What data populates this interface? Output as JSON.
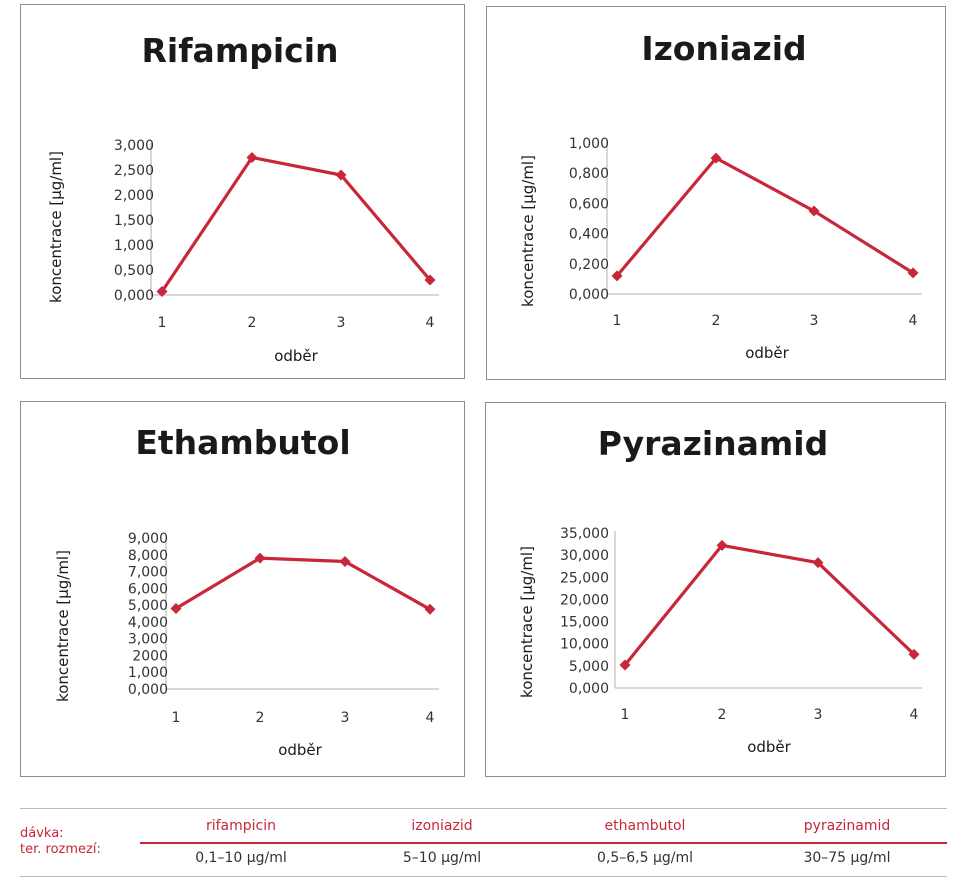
{
  "chart_data": [
    {
      "type": "line",
      "title": "Rifampicin",
      "xlabel": "odběr",
      "ylabel": "koncentrace [µg/ml]",
      "categories": [
        "1",
        "2",
        "3",
        "4"
      ],
      "values": [
        0.07,
        2.75,
        2.4,
        0.3
      ],
      "ylim": [
        0,
        3
      ],
      "yticks": [
        "0,000",
        "0,500",
        "1,000",
        "1,500",
        "2,000",
        "2,500",
        "3,000"
      ],
      "color": "#c8273a"
    },
    {
      "type": "line",
      "title": "Izoniazid",
      "xlabel": "odběr",
      "ylabel": "koncentrace [µg/ml]",
      "categories": [
        "1",
        "2",
        "3",
        "4"
      ],
      "values": [
        0.12,
        0.9,
        0.55,
        0.14
      ],
      "ylim": [
        0,
        1
      ],
      "yticks": [
        "0,000",
        "0,200",
        "0,400",
        "0,600",
        "0,800",
        "1,000"
      ],
      "color": "#c8273a"
    },
    {
      "type": "line",
      "title": "Ethambutol",
      "xlabel": "odběr",
      "ylabel": "koncentrace [µg/ml]",
      "categories": [
        "1",
        "2",
        "3",
        "4"
      ],
      "values": [
        4.8,
        7.8,
        7.6,
        4.75
      ],
      "ylim": [
        0,
        9
      ],
      "yticks": [
        "0,000",
        "1,000",
        "2000",
        "3,000",
        "4,000",
        "5,000",
        "6,000",
        "7,000",
        "8,000",
        "9,000"
      ],
      "color": "#c8273a"
    },
    {
      "type": "line",
      "title": "Pyrazinamid",
      "xlabel": "odběr",
      "ylabel": "koncentrace [µg/ml]",
      "categories": [
        "1",
        "2",
        "3",
        "4"
      ],
      "values": [
        5.2,
        32.2,
        28.3,
        7.6
      ],
      "ylim": [
        0,
        35
      ],
      "yticks": [
        "0,000",
        "5,000",
        "10,000",
        "15,000",
        "20,000",
        "25,000",
        "30,000",
        "35,000"
      ],
      "color": "#c8273a"
    }
  ],
  "dose_table": {
    "label_line1": "dávka:",
    "label_line2": "ter. rozmezí:",
    "columns": [
      {
        "name": "rifampicin",
        "range": "0,1–10 µg/ml"
      },
      {
        "name": "izoniazid",
        "range": "5–10 µg/ml"
      },
      {
        "name": "ethambutol",
        "range": "0,5–6,5 µg/ml"
      },
      {
        "name": "pyrazinamid",
        "range": "30–75 µg/ml"
      }
    ]
  }
}
